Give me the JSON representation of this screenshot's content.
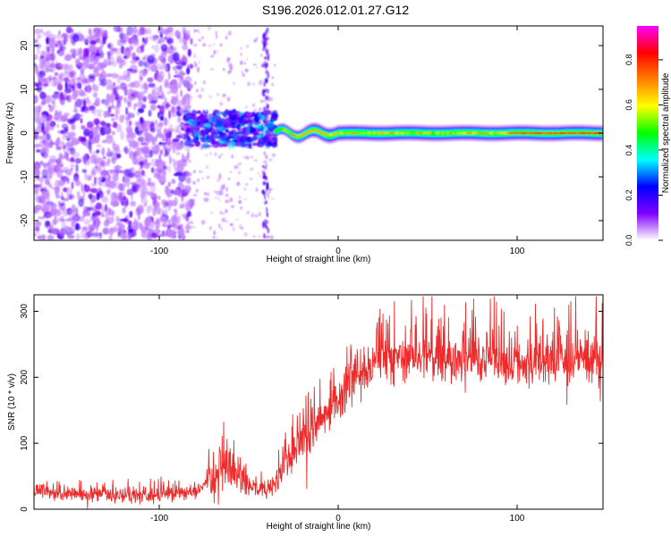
{
  "title": "S196.2026.012.01.27.G12",
  "chart_data": [
    {
      "type": "heatmap",
      "name": "spectrogram",
      "xlabel": "Height of straight line (km)",
      "ylabel": "Frequency (Hz)",
      "xlim": [
        -170,
        148
      ],
      "ylim": [
        -24.5,
        24.5
      ],
      "xticks": [
        -100,
        0,
        100
      ],
      "yticks": [
        -20,
        -10,
        0,
        10,
        20
      ],
      "colorbar": {
        "label": "Normalized spectral amplitude",
        "range": [
          0,
          0.95
        ],
        "ticks": [
          0.0,
          0.2,
          0.4,
          0.6,
          0.8
        ],
        "tick_labels": [
          "0.0",
          "0.2",
          "0.4",
          "0.6",
          "0.8"
        ],
        "colormap": [
          "#ffffff",
          "#8000ff",
          "#0000ff",
          "#00ffff",
          "#00ff00",
          "#ffff00",
          "#ff8000",
          "#ff0000",
          "#ff00ff"
        ]
      },
      "regions": [
        {
          "x_range": [
            -170,
            -85
          ],
          "freq_range": [
            -24,
            24
          ],
          "amplitude": [
            0.0,
            0.15
          ],
          "description": "noise"
        },
        {
          "x_range": [
            -85,
            -35
          ],
          "freq_range": [
            -3,
            5
          ],
          "amplitude": [
            0.1,
            0.35
          ]
        },
        {
          "x_range": [
            -35,
            148
          ],
          "freq_center": 0,
          "amplitude": [
            0.3,
            0.9
          ]
        }
      ]
    },
    {
      "type": "line",
      "name": "snr",
      "xlabel": "Height of straight line (km)",
      "ylabel": "SNR (10 * v/v)",
      "xlim": [
        -170,
        148
      ],
      "ylim": [
        0,
        325
      ],
      "xticks": [
        -100,
        0,
        100
      ],
      "yticks": [
        0,
        100,
        200,
        300
      ],
      "color": "#ee2a2a",
      "series": [
        {
          "name": "SNR",
          "x": [
            -170,
            -160,
            -150,
            -140,
            -130,
            -120,
            -110,
            -100,
            -90,
            -80,
            -70,
            -60,
            -50,
            -45,
            -40,
            -35,
            -30,
            -25,
            -20,
            -15,
            -10,
            -5,
            0,
            5,
            10,
            15,
            20,
            25,
            30,
            40,
            50,
            60,
            70,
            80,
            90,
            100,
            110,
            120,
            130,
            140,
            148
          ],
          "values": [
            28,
            25,
            22,
            22,
            21,
            21,
            21,
            22,
            24,
            28,
            45,
            70,
            40,
            32,
            28,
            40,
            65,
            80,
            105,
            120,
            135,
            150,
            165,
            185,
            200,
            212,
            220,
            226,
            228,
            230,
            228,
            229,
            228,
            229,
            225,
            222,
            220,
            222,
            224,
            226,
            228
          ]
        }
      ]
    }
  ]
}
